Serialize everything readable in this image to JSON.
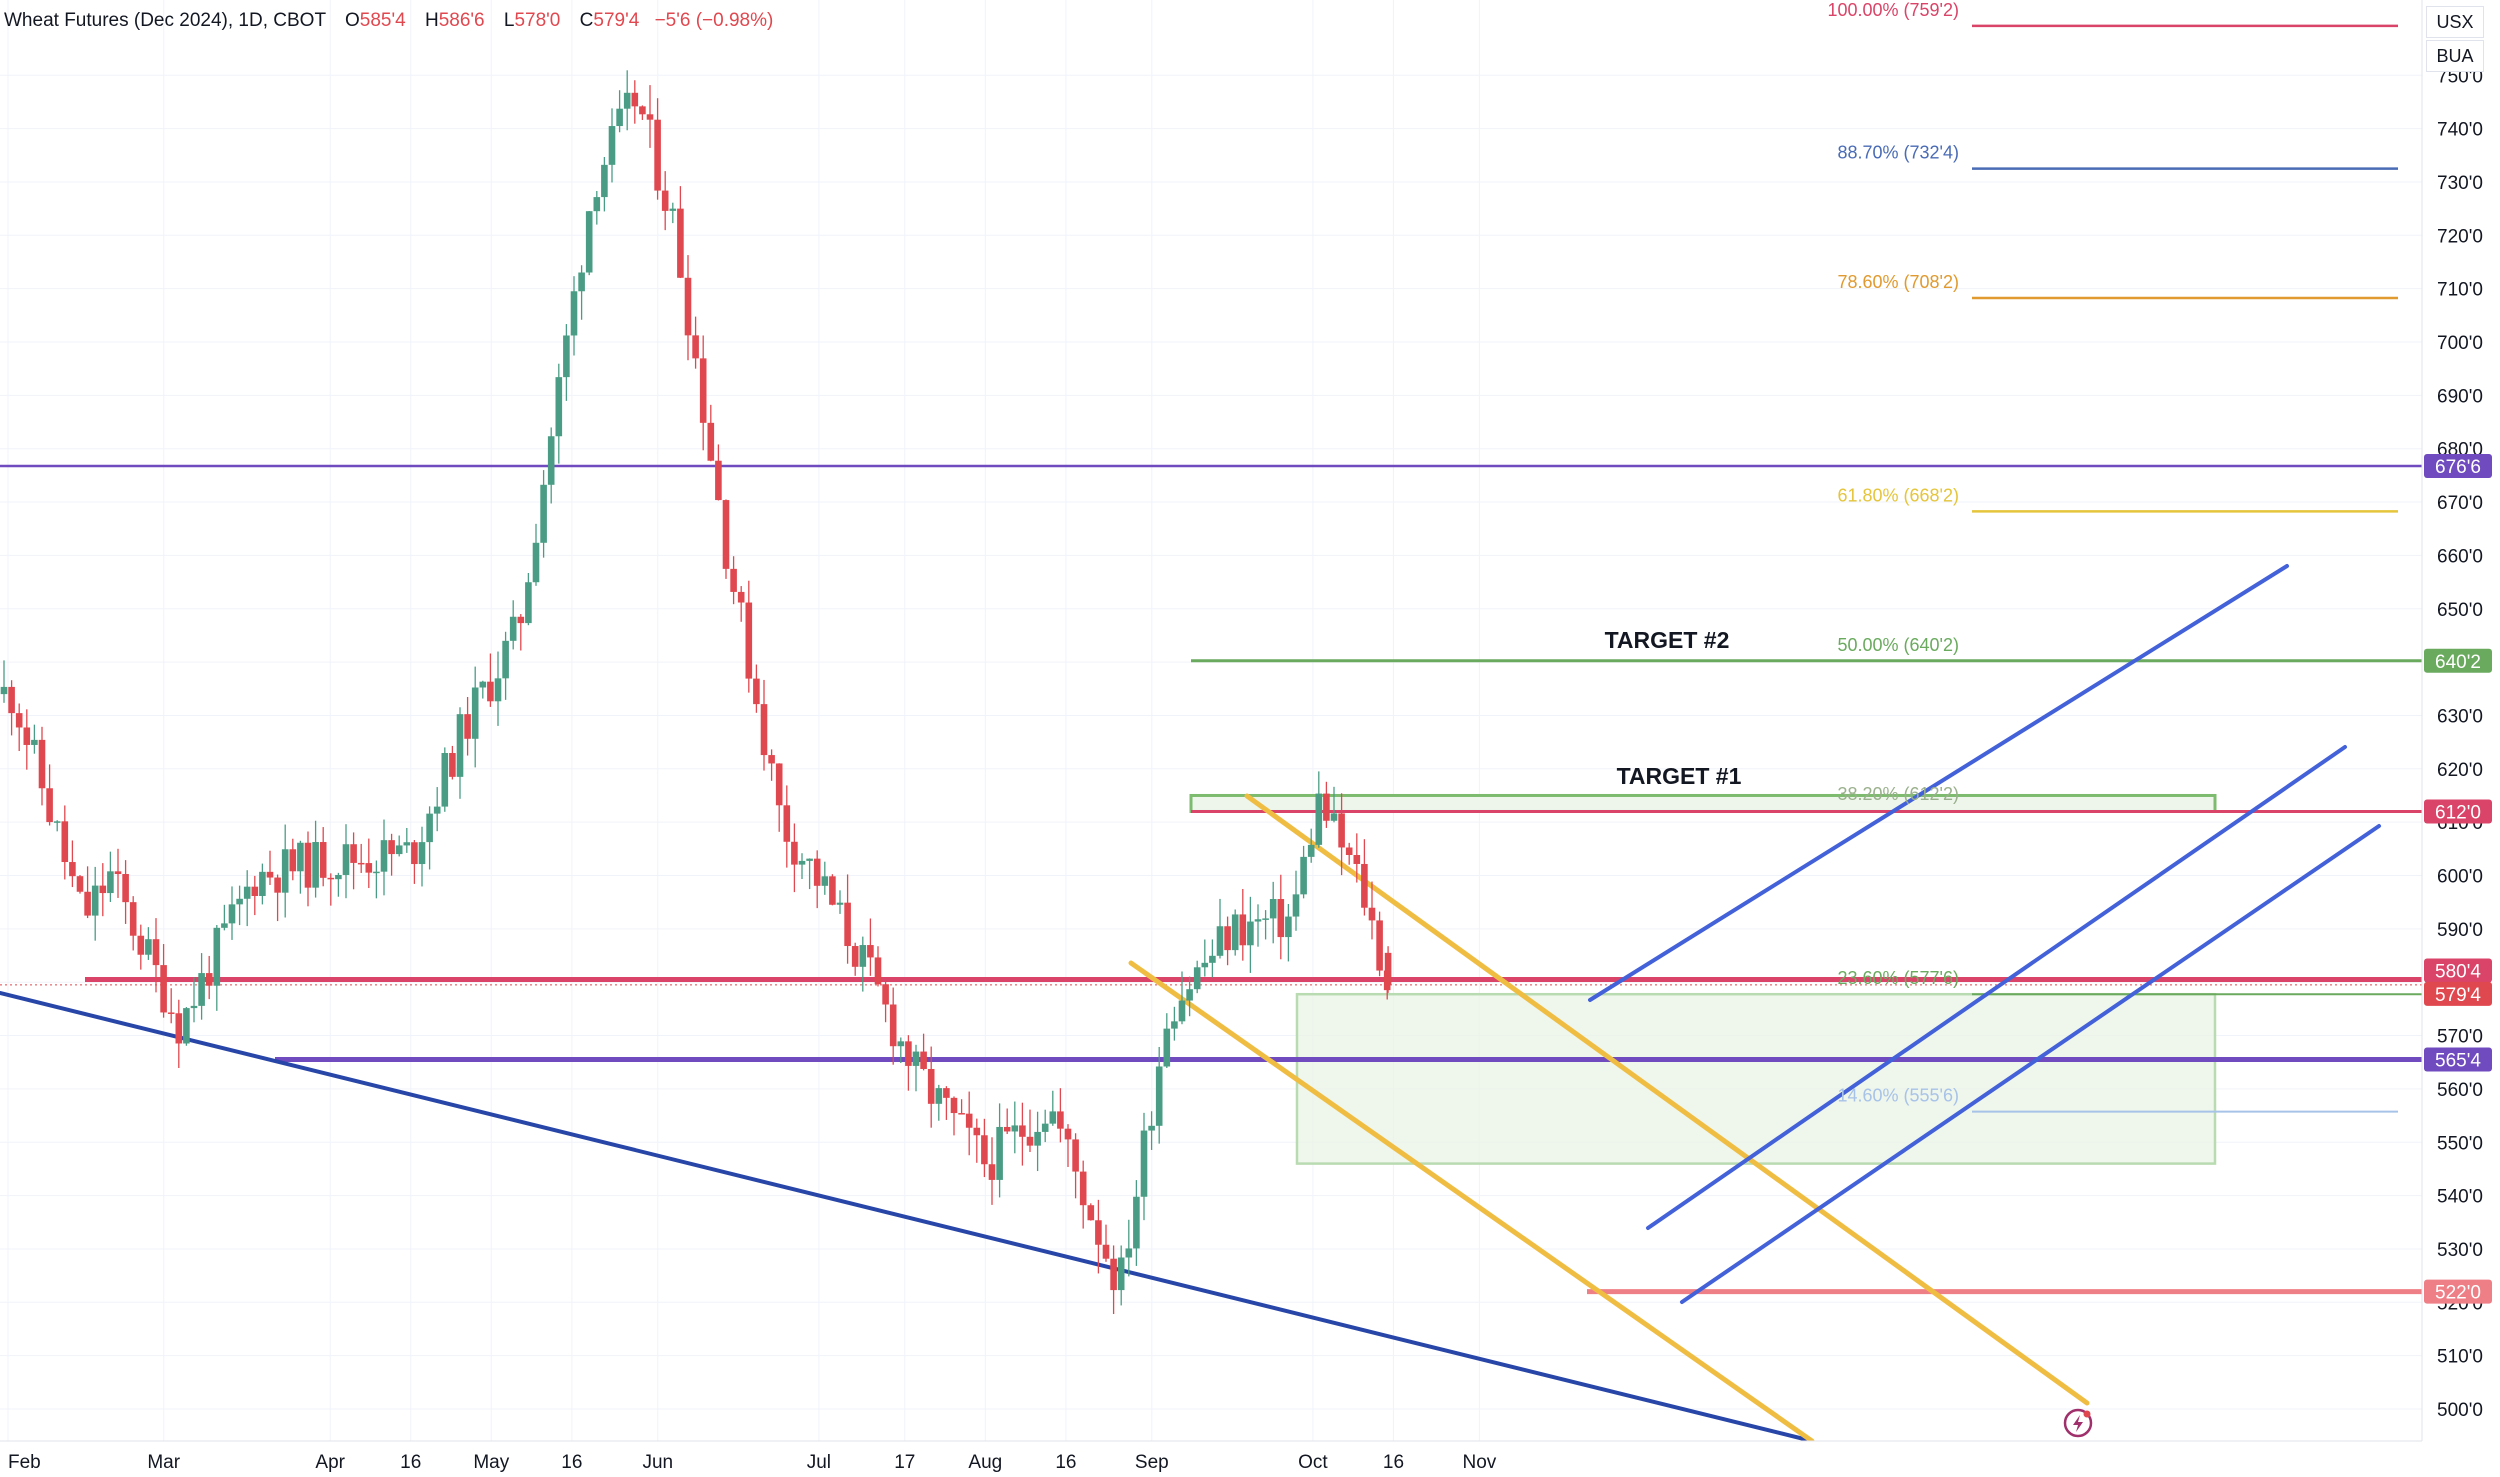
{
  "legend": {
    "title": "Wheat Futures (Dec 2024), 1D, CBOT",
    "o_label": "O",
    "o_value": "585'4",
    "h_label": "H",
    "h_value": "586'6",
    "l_label": "L",
    "l_value": "578'0",
    "c_label": "C",
    "c_value": "579'4",
    "change": "−5'6 (−0.98%)"
  },
  "buttons": {
    "currency": "USX",
    "unit": "BUA"
  },
  "colors": {
    "up": "#4a9d84",
    "down": "#e0484f",
    "purple": "#6f4bbf",
    "navy": "#2846a8",
    "blue": "#4361d8",
    "yellow": "#f0bd43",
    "green": "#6aaa5e",
    "pink": "#d94468"
  },
  "chart_data": {
    "type": "candlestick",
    "title": "Wheat Futures (Dec 2024), 1D, CBOT",
    "ylim": [
      495,
      765
    ],
    "y_ticks": [
      "500'0",
      "510'0",
      "520'0",
      "530'0",
      "540'0",
      "550'0",
      "560'0",
      "570'0",
      "580'0",
      "590'0",
      "600'0",
      "610'0",
      "620'0",
      "630'0",
      "640'0",
      "650'0",
      "660'0",
      "670'0",
      "680'0",
      "690'0",
      "700'0",
      "710'0",
      "720'0",
      "730'0",
      "740'0",
      "750'0"
    ],
    "x_ticks": [
      "Feb",
      "Mar",
      "Apr",
      "16",
      "May",
      "16",
      "Jun",
      "Jul",
      "17",
      "Aug",
      "16",
      "Sep",
      "Oct",
      "16",
      "Nov"
    ],
    "grid": true,
    "ohlc_approx": [
      {
        "date": "2024-02-02",
        "o": 640,
        "h": 645,
        "l": 628,
        "c": 634
      },
      {
        "date": "2024-02-15",
        "o": 620,
        "h": 624,
        "l": 588,
        "c": 592
      },
      {
        "date": "2024-02-20",
        "o": 592,
        "h": 604,
        "l": 582,
        "c": 600
      },
      {
        "date": "2024-03-04",
        "o": 580,
        "h": 587,
        "l": 569,
        "c": 572
      },
      {
        "date": "2024-03-18",
        "o": 590,
        "h": 604,
        "l": 585,
        "c": 600
      },
      {
        "date": "2024-04-01",
        "o": 605,
        "h": 613,
        "l": 598,
        "c": 603
      },
      {
        "date": "2024-04-16",
        "o": 607,
        "h": 614,
        "l": 599,
        "c": 604
      },
      {
        "date": "2024-04-26",
        "o": 595,
        "h": 630,
        "l": 592,
        "c": 628
      },
      {
        "date": "2024-05-06",
        "o": 650,
        "h": 670,
        "l": 641,
        "c": 646
      },
      {
        "date": "2024-05-13",
        "o": 670,
        "h": 692,
        "l": 666,
        "c": 688
      },
      {
        "date": "2024-05-20",
        "o": 710,
        "h": 740,
        "l": 708,
        "c": 730
      },
      {
        "date": "2024-05-28",
        "o": 740,
        "h": 760,
        "l": 735,
        "c": 746
      },
      {
        "date": "2024-06-04",
        "o": 730,
        "h": 741,
        "l": 716,
        "c": 722
      },
      {
        "date": "2024-06-14",
        "o": 676,
        "h": 680,
        "l": 655,
        "c": 660
      },
      {
        "date": "2024-06-24",
        "o": 625,
        "h": 628,
        "l": 605,
        "c": 610
      },
      {
        "date": "2024-07-01",
        "o": 584,
        "h": 600,
        "l": 582,
        "c": 599
      },
      {
        "date": "2024-07-10",
        "o": 597,
        "h": 604,
        "l": 580,
        "c": 582
      },
      {
        "date": "2024-07-19",
        "o": 566,
        "h": 577,
        "l": 557,
        "c": 563
      },
      {
        "date": "2024-08-01",
        "o": 559,
        "h": 566,
        "l": 540,
        "c": 546
      },
      {
        "date": "2024-08-13",
        "o": 561,
        "h": 569,
        "l": 548,
        "c": 557
      },
      {
        "date": "2024-08-26",
        "o": 528,
        "h": 534,
        "l": 520,
        "c": 523
      },
      {
        "date": "2024-09-04",
        "o": 556,
        "h": 585,
        "l": 553,
        "c": 575
      },
      {
        "date": "2024-09-16",
        "o": 574,
        "h": 598,
        "l": 569,
        "c": 590
      },
      {
        "date": "2024-09-27",
        "o": 580,
        "h": 596,
        "l": 576,
        "c": 592
      },
      {
        "date": "2024-10-02",
        "o": 600,
        "h": 617,
        "l": 590,
        "c": 614
      },
      {
        "date": "2024-10-10",
        "o": 596,
        "h": 606,
        "l": 589,
        "c": 598
      },
      {
        "date": "2024-10-15",
        "o": 585.5,
        "h": 586.75,
        "l": 578,
        "c": 579.5
      }
    ],
    "price_labels": [
      {
        "text": "676'6",
        "value": 676.75,
        "color": "#6f4bbf"
      },
      {
        "text": "640'2",
        "value": 640.25,
        "color": "#6aaa5e"
      },
      {
        "text": "612'0",
        "value": 612,
        "color": "#d94468"
      },
      {
        "text": "580'4",
        "value": 580.5,
        "color": "#d94468"
      },
      {
        "text": "579'4",
        "value": 579.5,
        "color": "#e0484f"
      },
      {
        "text": "565'4",
        "value": 565.5,
        "color": "#6f4bbf"
      },
      {
        "text": "522'0",
        "value": 522,
        "color": "#ef7f86"
      }
    ],
    "fib_levels": [
      {
        "label": "100.00% (759'2)",
        "value": 759.25,
        "color": "#d94468"
      },
      {
        "label": "88.70% (732'4)",
        "value": 732.5,
        "color": "#4a6bb5"
      },
      {
        "label": "78.60% (708'2)",
        "value": 708.25,
        "color": "#e09a2f"
      },
      {
        "label": "61.80% (668'2)",
        "value": 668.25,
        "color": "#e5c53c"
      },
      {
        "label": "50.00% (640'2)",
        "value": 640.25,
        "color": "#6aaa5e"
      },
      {
        "label": "38.20% (612'2)",
        "value": 612.25,
        "color": "#9ab08c"
      },
      {
        "label": "23.60% (577'6)",
        "value": 577.75,
        "color": "#6aaa5e"
      },
      {
        "label": "14.60% (555'6)",
        "value": 555.75,
        "color": "#a8c3e8"
      }
    ],
    "annotations": [
      "TARGET #2",
      "TARGET #1"
    ]
  }
}
